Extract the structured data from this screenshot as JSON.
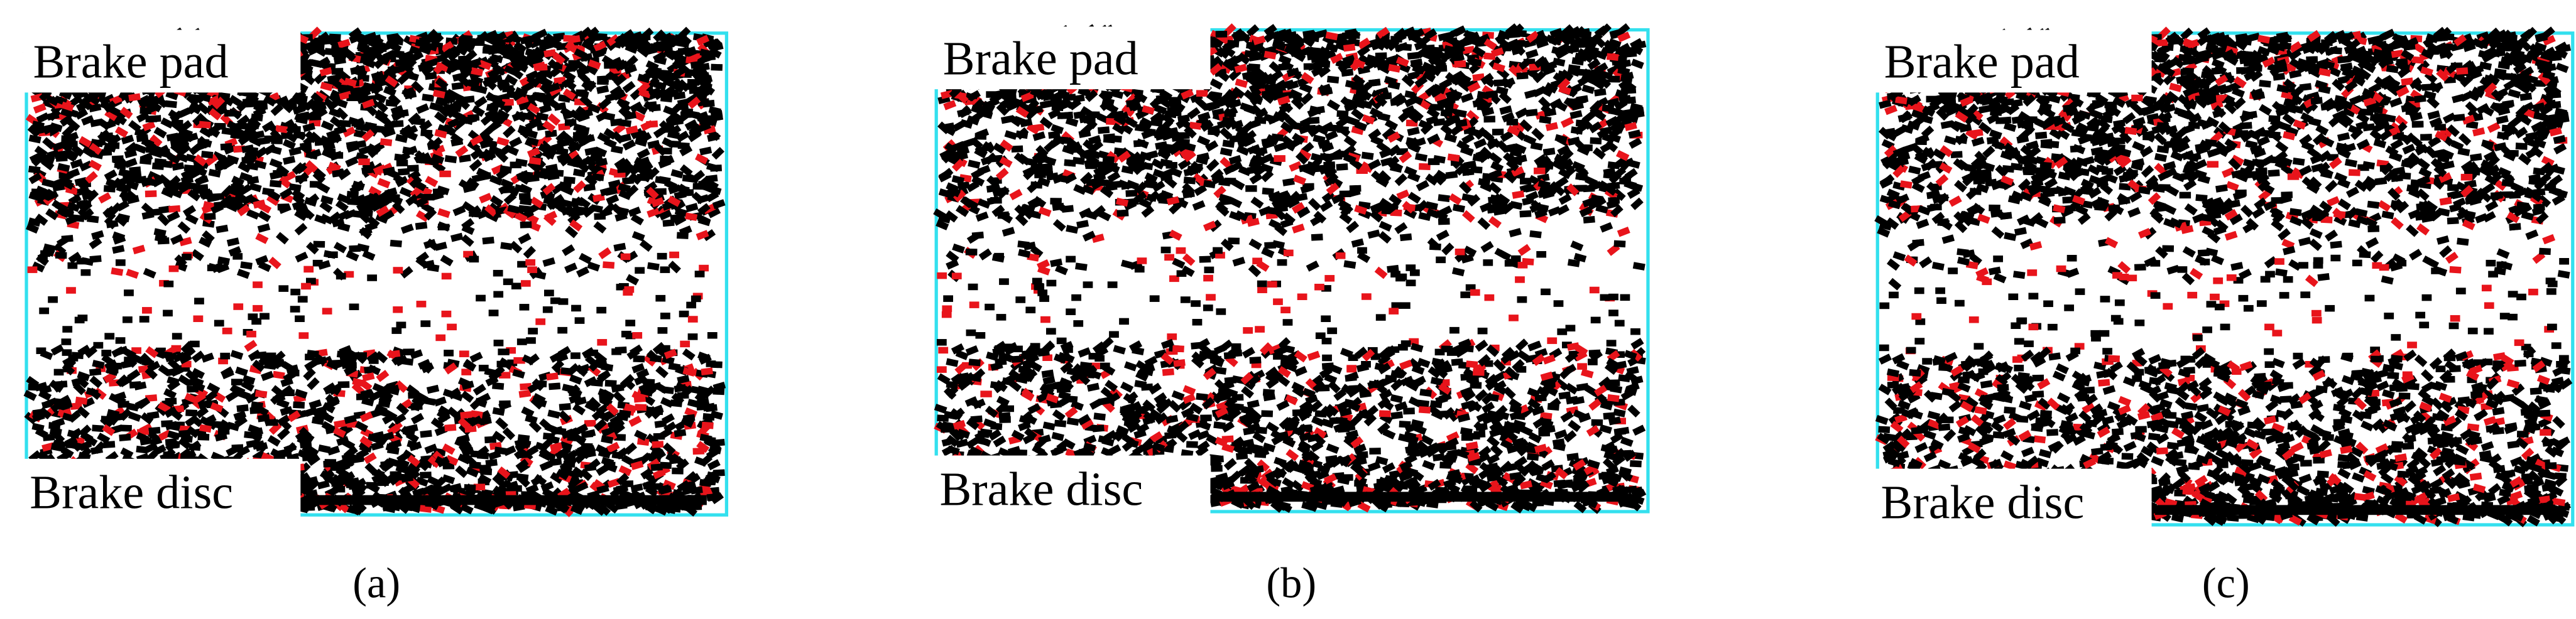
{
  "panels": [
    {
      "top_label": "Brake pad",
      "bottom_label": "Brake disc",
      "caption": "(a)"
    },
    {
      "top_label": "Brake pad",
      "bottom_label": "Brake disc",
      "caption": "(b)"
    },
    {
      "top_label": "Brake pad",
      "bottom_label": "Brake disc",
      "caption": "(c)"
    }
  ]
}
